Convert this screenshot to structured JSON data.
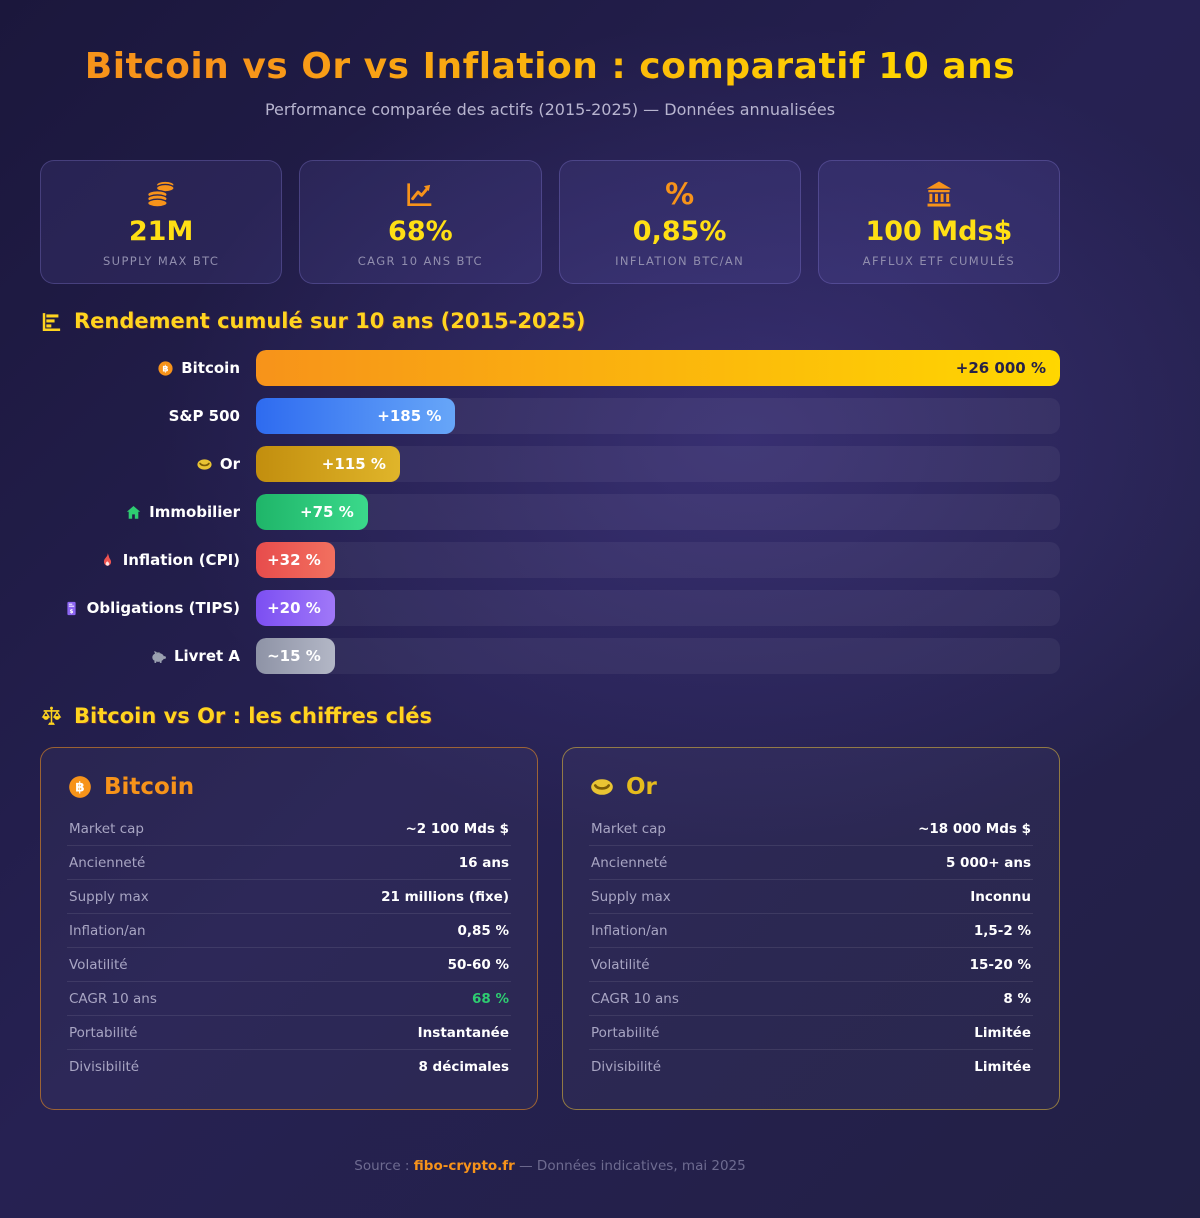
{
  "header": {
    "title": "Bitcoin vs Or vs Inflation : comparatif 10 ans",
    "subtitle": "Performance comparée des actifs (2015-2025) — Données annualisées"
  },
  "colors": {
    "accent_orange": "#f7931a",
    "accent_yellow": "#ffd41f",
    "positive_green": "#2ecc71",
    "background_navy": "#241f4a"
  },
  "stats": [
    {
      "icon": "coins-stack-icon",
      "value": "21M",
      "label": "SUPPLY MAX BTC"
    },
    {
      "icon": "chart-increasing-icon",
      "value": "68%",
      "label": "CAGR 10 ANS BTC"
    },
    {
      "icon": "percent-icon",
      "value": "0,85%",
      "label": "INFLATION BTC/AN"
    },
    {
      "icon": "bank-icon",
      "value": "100 Mds$",
      "label": "AFFLUX ETF CUMULÉS"
    }
  ],
  "chart_section": {
    "title": "Rendement cumulé sur 10 ans (2015-2025)"
  },
  "chart_data": {
    "type": "bar",
    "orientation": "horizontal",
    "title": "Rendement cumulé sur 10 ans (2015-2025)",
    "unit": "%",
    "categories": [
      "Bitcoin",
      "S&P 500",
      "Or",
      "Immobilier",
      "Inflation (CPI)",
      "Obligations (TIPS)",
      "Livret A"
    ],
    "values": [
      26000,
      185,
      115,
      75,
      32,
      20,
      15
    ],
    "bars": [
      {
        "label": "Bitcoin",
        "icon": "bitcoin-coin-icon",
        "value": 26000,
        "value_label": "+26 000 %",
        "width_pct": 100,
        "color_from": "#f7931a",
        "color_to": "#ffd700",
        "text_color": "#262148"
      },
      {
        "label": "S&P 500",
        "icon": null,
        "value": 185,
        "value_label": "+185 %",
        "width_pct": 24.8,
        "color_from": "#2e6bf0",
        "color_to": "#67a6f8",
        "text_color": "#ffffff"
      },
      {
        "label": "Or",
        "icon": "gold-coin-icon",
        "value": 115,
        "value_label": "+115 %",
        "width_pct": 17.9,
        "color_from": "#c28e0e",
        "color_to": "#e0b52a",
        "text_color": "#ffffff"
      },
      {
        "label": "Immobilier",
        "icon": "house-icon",
        "value": 75,
        "value_label": "+75 %",
        "width_pct": 13.9,
        "color_from": "#1fb569",
        "color_to": "#3bd98b",
        "text_color": "#ffffff"
      },
      {
        "label": "Inflation (CPI)",
        "icon": "flame-icon",
        "value": 32,
        "value_label": "+32 %",
        "width_pct": 9.8,
        "color_from": "#e74c4c",
        "color_to": "#f2705f",
        "text_color": "#ffffff"
      },
      {
        "label": "Obligations (TIPS)",
        "icon": "bond-receipt-icon",
        "value": 20,
        "value_label": "+20 %",
        "width_pct": 9.8,
        "color_from": "#7c4ff2",
        "color_to": "#a078f8",
        "text_color": "#ffffff"
      },
      {
        "label": "Livret A",
        "icon": "piggy-bank-icon",
        "value": 15,
        "value_label": "~15 %",
        "width_pct": 9.8,
        "color_from": "#8e93a6",
        "color_to": "#b3b7c6",
        "text_color": "#ffffff"
      }
    ]
  },
  "comparison_section": {
    "title": "Bitcoin vs Or : les chiffres clés"
  },
  "comparison": {
    "bitcoin": {
      "title": "Bitcoin",
      "rows": [
        {
          "label": "Market cap",
          "value": "~2 100 Mds $"
        },
        {
          "label": "Ancienneté",
          "value": "16 ans"
        },
        {
          "label": "Supply max",
          "value": "21 millions (fixe)"
        },
        {
          "label": "Inflation/an",
          "value": "0,85 %"
        },
        {
          "label": "Volatilité",
          "value": "50-60 %"
        },
        {
          "label": "CAGR 10 ans",
          "value": "68 %",
          "value_color": "#2ecc71"
        },
        {
          "label": "Portabilité",
          "value": "Instantanée"
        },
        {
          "label": "Divisibilité",
          "value": "8 décimales"
        }
      ]
    },
    "gold": {
      "title": "Or",
      "rows": [
        {
          "label": "Market cap",
          "value": "~18 000 Mds $"
        },
        {
          "label": "Ancienneté",
          "value": "5 000+ ans"
        },
        {
          "label": "Supply max",
          "value": "Inconnu"
        },
        {
          "label": "Inflation/an",
          "value": "1,5-2 %"
        },
        {
          "label": "Volatilité",
          "value": "15-20 %"
        },
        {
          "label": "CAGR 10 ans",
          "value": "8 %"
        },
        {
          "label": "Portabilité",
          "value": "Limitée"
        },
        {
          "label": "Divisibilité",
          "value": "Limitée"
        }
      ]
    }
  },
  "footer": {
    "prefix": "Source :",
    "source": "fibo-crypto.fr",
    "suffix": "— Données indicatives, mai 2025"
  }
}
